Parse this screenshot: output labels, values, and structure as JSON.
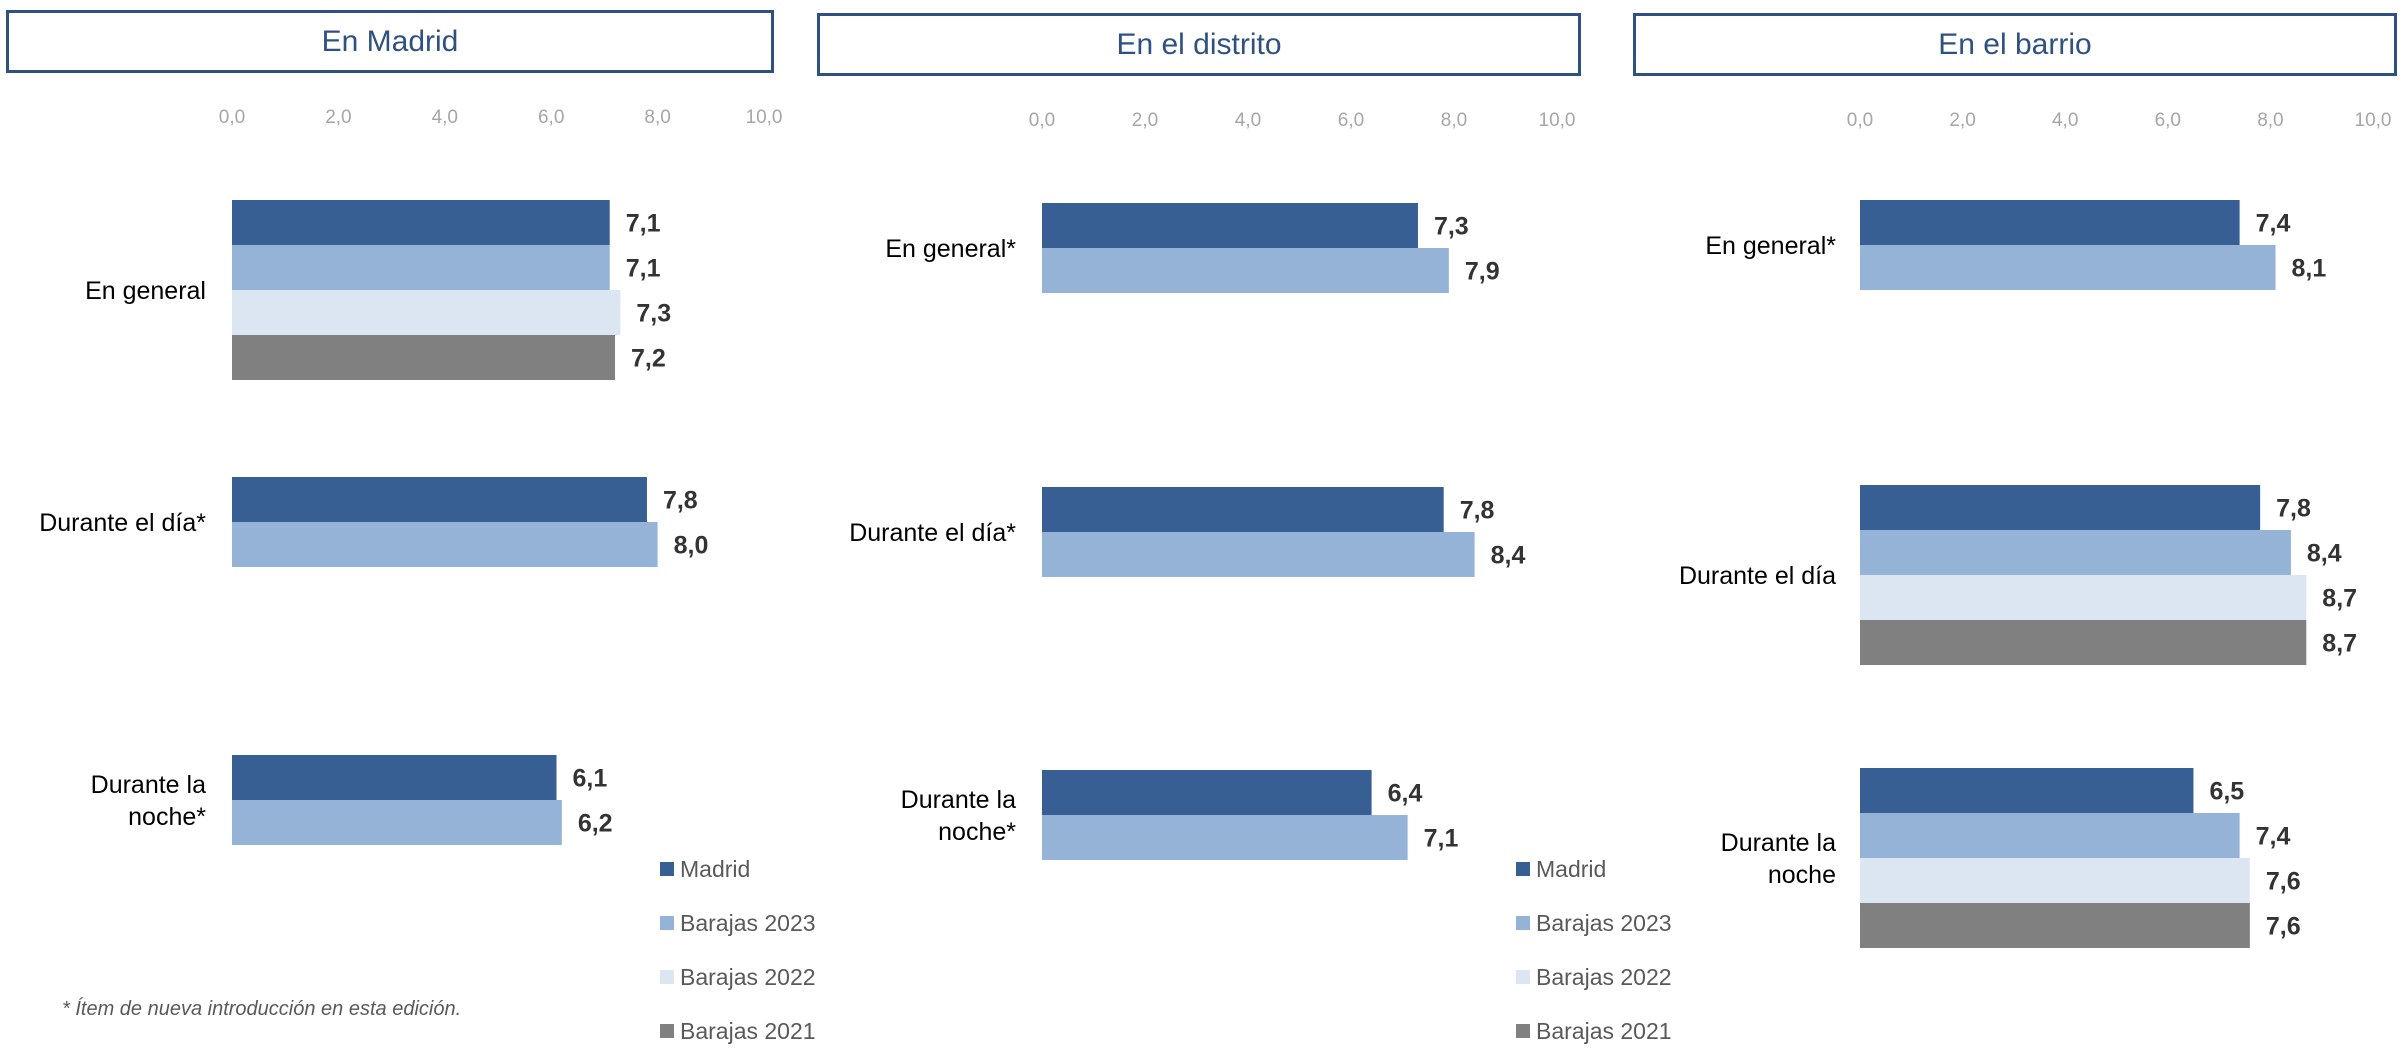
{
  "colors": {
    "Madrid": "#375f93",
    "Barajas 2023": "#95b3d7",
    "Barajas 2022": "#dce6f2",
    "Barajas 2021": "#808080"
  },
  "legend": [
    "Madrid",
    "Barajas 2023",
    "Barajas 2022",
    "Barajas 2021"
  ],
  "footnote": "* Ítem de nueva introducción en esta edición.",
  "chart_data": [
    {
      "type": "bar",
      "orientation": "horizontal",
      "title": "En Madrid",
      "xlim": [
        0,
        10
      ],
      "ticks": [
        "0,0",
        "2,0",
        "4,0",
        "6,0",
        "8,0",
        "10,0"
      ],
      "categories": [
        {
          "label": [
            "En general"
          ],
          "series": [
            "Madrid",
            "Barajas 2023",
            "Barajas 2022",
            "Barajas 2021"
          ],
          "values": [
            7.1,
            7.1,
            7.3,
            7.2
          ],
          "labels": [
            "7,1",
            "7,1",
            "7,3",
            "7,2"
          ]
        },
        {
          "label": [
            "Durante el día*"
          ],
          "series": [
            "Madrid",
            "Barajas 2023"
          ],
          "values": [
            7.8,
            8.0
          ],
          "labels": [
            "7,8",
            "8,0"
          ]
        },
        {
          "label": [
            "Durante la",
            "noche*"
          ],
          "series": [
            "Madrid",
            "Barajas 2023"
          ],
          "values": [
            6.1,
            6.2
          ],
          "labels": [
            "6,1",
            "6,2"
          ]
        }
      ]
    },
    {
      "type": "bar",
      "orientation": "horizontal",
      "title": "En el distrito",
      "xlim": [
        0,
        10
      ],
      "ticks": [
        "0,0",
        "2,0",
        "4,0",
        "6,0",
        "8,0",
        "10,0"
      ],
      "categories": [
        {
          "label": [
            "En general*"
          ],
          "series": [
            "Madrid",
            "Barajas 2023"
          ],
          "values": [
            7.3,
            7.9
          ],
          "labels": [
            "7,3",
            "7,9"
          ]
        },
        {
          "label": [
            "Durante el día*"
          ],
          "series": [
            "Madrid",
            "Barajas 2023"
          ],
          "values": [
            7.8,
            8.4
          ],
          "labels": [
            "7,8",
            "8,4"
          ]
        },
        {
          "label": [
            "Durante la",
            "noche*"
          ],
          "series": [
            "Madrid",
            "Barajas 2023"
          ],
          "values": [
            6.4,
            7.1
          ],
          "labels": [
            "6,4",
            "7,1"
          ]
        }
      ]
    },
    {
      "type": "bar",
      "orientation": "horizontal",
      "title": "En el barrio",
      "xlim": [
        0,
        10
      ],
      "ticks": [
        "0,0",
        "2,0",
        "4,0",
        "6,0",
        "8,0",
        "10,0"
      ],
      "categories": [
        {
          "label": [
            "En general*"
          ],
          "series": [
            "Madrid",
            "Barajas 2023"
          ],
          "values": [
            7.4,
            8.1
          ],
          "labels": [
            "7,4",
            "8,1"
          ]
        },
        {
          "label": [
            "Durante el día"
          ],
          "series": [
            "Madrid",
            "Barajas 2023",
            "Barajas 2022",
            "Barajas 2021"
          ],
          "values": [
            7.8,
            8.4,
            8.7,
            8.7
          ],
          "labels": [
            "7,8",
            "8,4",
            "8,7",
            "8,7"
          ]
        },
        {
          "label": [
            "Durante la",
            "noche"
          ],
          "series": [
            "Madrid",
            "Barajas 2023",
            "Barajas 2022",
            "Barajas 2021"
          ],
          "values": [
            6.5,
            7.4,
            7.6,
            7.6
          ],
          "labels": [
            "6,5",
            "7,4",
            "7,6",
            "7,6"
          ]
        }
      ]
    }
  ]
}
